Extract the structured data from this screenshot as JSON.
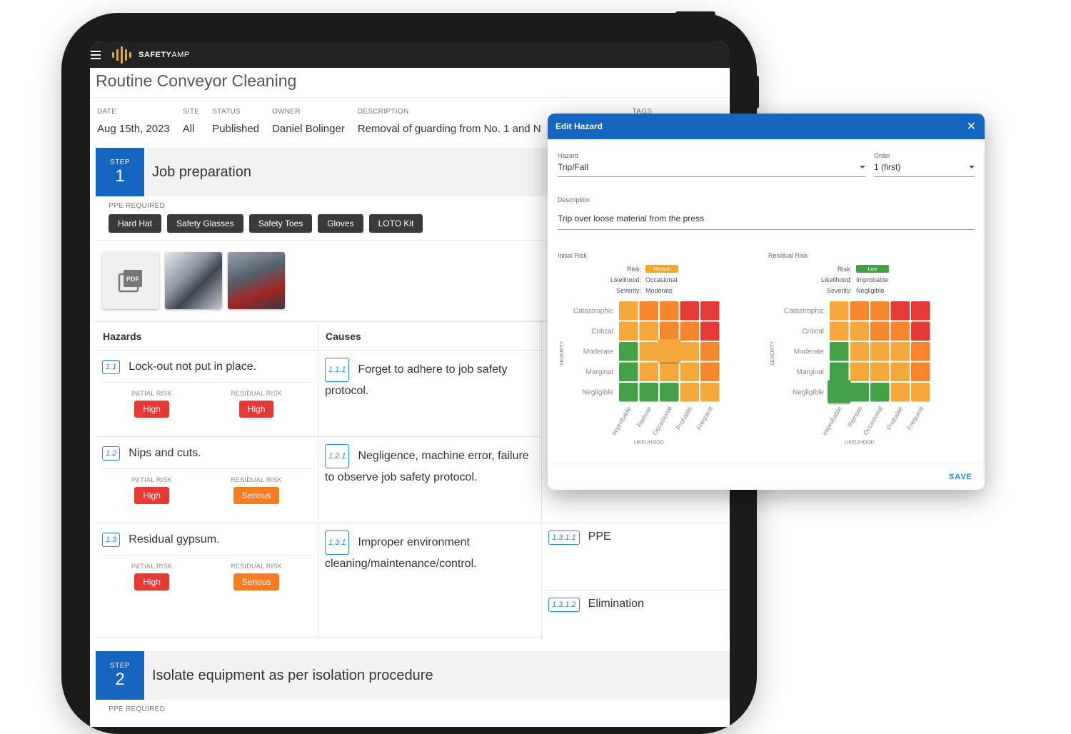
{
  "app": {
    "brand_bold": "SAFETY",
    "brand_light": "AMP"
  },
  "page": {
    "title": "Routine Conveyor Cleaning"
  },
  "meta": {
    "date_label": "DATE",
    "date": "Aug 15th, 2023",
    "site_label": "SITE",
    "site": "All",
    "status_label": "STATUS",
    "status": "Published",
    "owner_label": "OWNER",
    "owner": "Daniel Bolinger",
    "description_label": "DESCRIPTION",
    "description": "Removal of guarding from No. 1 and N",
    "tags_label": "TAGS"
  },
  "step1": {
    "label": "STEP",
    "number": "1",
    "title": "Job preparation",
    "ppe_label": "PPE REQUIRED",
    "ppe": [
      "Hard Hat",
      "Safety Glasses",
      "Safety Toes",
      "Gloves",
      "LOTO Kit"
    ],
    "pdf_label": "PDF"
  },
  "columns": {
    "hazards": "Hazards",
    "causes": "Causes"
  },
  "hazards": [
    {
      "id": "1.1",
      "text": "Lock-out not put in place.",
      "initial_label": "INITIAL RISK",
      "initial": "High",
      "residual_label": "RESIDUAL RISK",
      "residual": "High"
    },
    {
      "id": "1.2",
      "text": "Nips and cuts.",
      "initial_label": "INITIAL RISK",
      "initial": "High",
      "residual_label": "RESIDUAL RISK",
      "residual": "Serious"
    },
    {
      "id": "1.3",
      "text": "Residual gypsum.",
      "initial_label": "INITIAL RISK",
      "initial": "High",
      "residual_label": "RESIDUAL RISK",
      "residual": "Serious"
    }
  ],
  "causes": [
    {
      "id": "1.1.1",
      "text": "Forget to adhere to job safety protocol."
    },
    {
      "id": "1.2.1",
      "text": "Negligence, machine error, failure to observe job safety protocol."
    },
    {
      "id": "1.3.1",
      "text": "Improper environment cleaning/maintenance/control."
    }
  ],
  "controls": [
    {
      "id": "1.3.1.1",
      "text": "PPE"
    },
    {
      "id": "1.3.1.2",
      "text": "Elimination"
    }
  ],
  "step2": {
    "label": "STEP",
    "number": "2",
    "title": "Isolate equipment as per isolation procedure",
    "ppe_label": "PPE REQUIRED"
  },
  "dialog": {
    "title": "Edit Hazard",
    "hazard_label": "Hazard",
    "hazard_value": "Trip/Fall",
    "order_label": "Order",
    "order_value": "1 (first)",
    "description_label": "Description",
    "description_value": "Trip over loose material from the press",
    "save_label": "SAVE",
    "initial": {
      "title": "Initial Risk",
      "risk_label": "Risk:",
      "risk": "Medium",
      "risk_color": "#f5a623",
      "likelihood_label": "Likelihood:",
      "likelihood": "Occasional",
      "severity_label": "Severity:",
      "severity": "Moderate",
      "selected": [
        2,
        2
      ]
    },
    "residual": {
      "title": "Residual Risk",
      "risk_label": "Risk:",
      "risk": "Low",
      "risk_color": "#43a047",
      "likelihood_label": "Likelihood:",
      "likelihood": "Improbable",
      "severity_label": "Severity:",
      "severity": "Negligible",
      "selected": [
        4,
        0
      ]
    },
    "severity_axis": "SEVERITY",
    "likelihood_axis": "LIKELIHOOD",
    "severity_levels": [
      "Catastrophic",
      "Critical",
      "Moderate",
      "Marginal",
      "Negligible"
    ],
    "likelihood_levels": [
      "Improbable",
      "Remote",
      "Occasional",
      "Probable",
      "Frequent"
    ],
    "matrix_colors": [
      [
        "#f5a93c",
        "#f5862b",
        "#f5862b",
        "#e53935",
        "#e53935"
      ],
      [
        "#f5a93c",
        "#f5a93c",
        "#f5862b",
        "#f5862b",
        "#e53935"
      ],
      [
        "#43a047",
        "#f5a93c",
        "#f5a93c",
        "#f5a93c",
        "#f5862b"
      ],
      [
        "#43a047",
        "#f5a93c",
        "#f5a93c",
        "#f5a93c",
        "#f5862b"
      ],
      [
        "#43a047",
        "#43a047",
        "#43a047",
        "#f5a93c",
        "#f5a93c"
      ]
    ]
  }
}
